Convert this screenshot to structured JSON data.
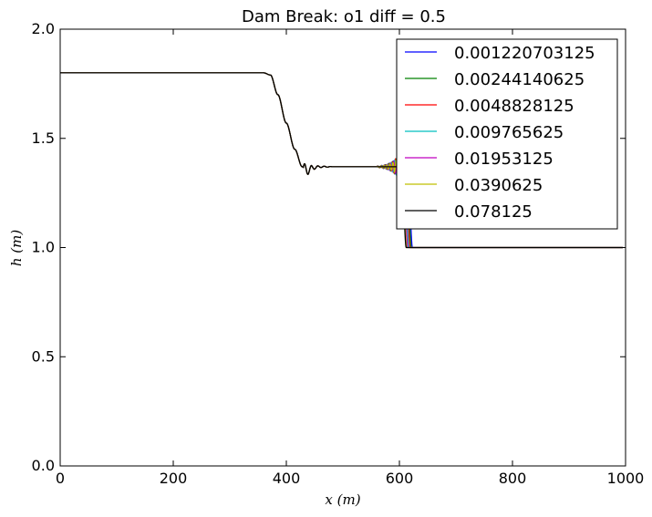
{
  "chart_data": {
    "type": "line",
    "title": "Dam Break: o1 diff = 0.5",
    "xlabel": "x (m)",
    "ylabel": "h (m)",
    "xlim": [
      0,
      1000
    ],
    "ylim": [
      0.0,
      2.0
    ],
    "xticks": [
      "0",
      "200",
      "400",
      "600",
      "800",
      "1000"
    ],
    "yticks": [
      "0.0",
      "0.5",
      "1.0",
      "1.5",
      "2.0"
    ],
    "grid": false,
    "legend_position": "top-right",
    "profile": {
      "x": [
        0,
        360,
        372,
        385,
        400,
        415,
        428,
        437,
        445,
        460,
        480,
        520,
        560,
        585,
        600,
        610,
        616,
        622,
        700,
        800,
        900,
        995
      ],
      "h": [
        1.8,
        1.8,
        1.79,
        1.7,
        1.57,
        1.45,
        1.37,
        1.35,
        1.365,
        1.37,
        1.37,
        1.37,
        1.37,
        1.37,
        1.37,
        1.37,
        1.3,
        1.0,
        1.0,
        1.0,
        1.0,
        1.0
      ]
    },
    "series": [
      {
        "name": "0.001220703125",
        "color": "#0000ff",
        "shock_x": 623,
        "ripple_amp": 0.16
      },
      {
        "name": "0.00244140625",
        "color": "#008000",
        "shock_x": 621,
        "ripple_amp": 0.14
      },
      {
        "name": "0.0048828125",
        "color": "#ff0000",
        "shock_x": 619,
        "ripple_amp": 0.12
      },
      {
        "name": "0.009765625",
        "color": "#00bfbf",
        "shock_x": 617,
        "ripple_amp": 0.1
      },
      {
        "name": "0.01953125",
        "color": "#bf00bf",
        "shock_x": 615,
        "ripple_amp": 0.08
      },
      {
        "name": "0.0390625",
        "color": "#bfbf00",
        "shock_x": 613,
        "ripple_amp": 0.06
      },
      {
        "name": "0.078125",
        "color": "#000000",
        "shock_x": 612,
        "ripple_amp": 0.0
      }
    ]
  }
}
